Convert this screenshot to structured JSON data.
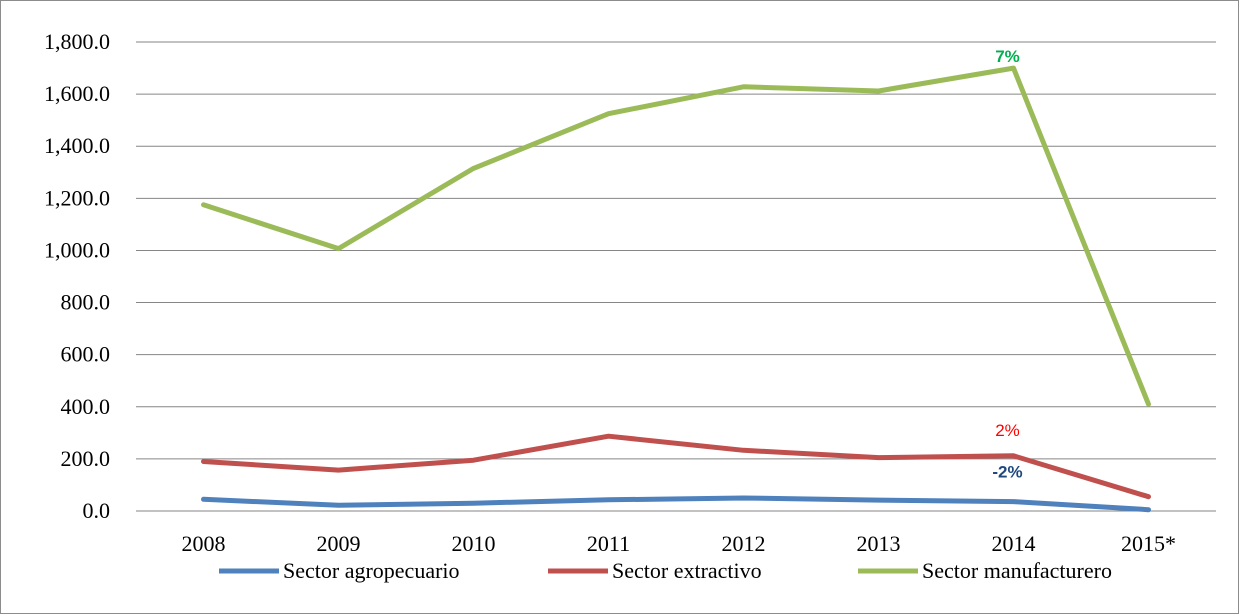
{
  "chart_data": {
    "type": "line",
    "categories": [
      "2008",
      "2009",
      "2010",
      "2011",
      "2012",
      "2013",
      "2014",
      "2015*"
    ],
    "ylim": [
      0,
      1800
    ],
    "yticks": [
      "0.0",
      "200.0",
      "400.0",
      "600.0",
      "800.0",
      "1,000.0",
      "1,200.0",
      "1,400.0",
      "1,600.0",
      "1,800.0"
    ],
    "grid": true,
    "legend_position": "bottom",
    "series": [
      {
        "name": "Sector agropecuario",
        "color": "#4f81bd",
        "values": [
          45,
          22,
          30,
          43,
          50,
          42,
          36,
          5
        ]
      },
      {
        "name": "Sector extractivo",
        "color": "#c0504d",
        "values": [
          190,
          157,
          195,
          287,
          233,
          205,
          212,
          55
        ]
      },
      {
        "name": "Sector manufacturero",
        "color": "#9bbb59",
        "values": [
          1175,
          1007,
          1315,
          1525,
          1628,
          1612,
          1700,
          410
        ]
      }
    ],
    "annotations": [
      {
        "text": "7%",
        "series": 2,
        "category": "2014",
        "color": "#00b050",
        "bold": true
      },
      {
        "text": "2%",
        "series": 1,
        "category": "2014",
        "color": "#ff0000",
        "bold": false
      },
      {
        "text": "-2%",
        "series": 0,
        "category": "2014",
        "color": "#1f497d",
        "bold": true
      }
    ]
  }
}
